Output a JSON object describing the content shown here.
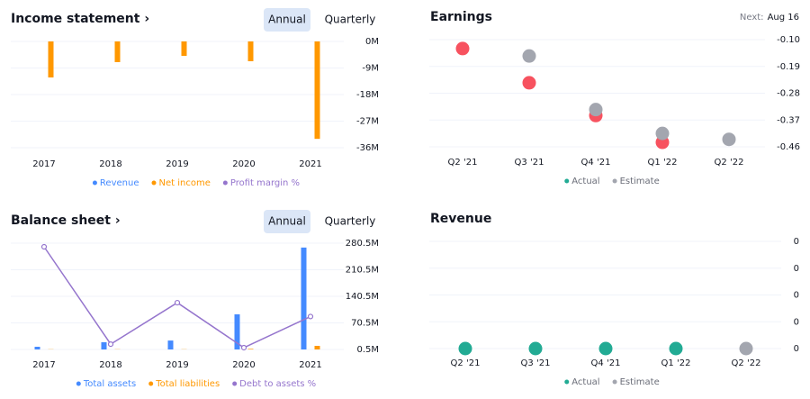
{
  "chart_data": [
    {
      "type": "bar",
      "title": "Income statement ›",
      "buttons": [
        "Annual",
        "Quarterly"
      ],
      "categories": [
        "2017",
        "2018",
        "2019",
        "2020",
        "2021"
      ],
      "series": [
        {
          "name": "Revenue",
          "color": "#448aff",
          "values": [
            null,
            null,
            null,
            null,
            null
          ]
        },
        {
          "name": "Net income",
          "color": "#ff9800",
          "values": [
            -12.2,
            -7,
            -4.9,
            -6.7,
            -33
          ]
        },
        {
          "name": "Profit margin %",
          "color": "#9575cd",
          "type": "line",
          "values": [
            null,
            null,
            null,
            null,
            null
          ]
        }
      ],
      "ylim": [
        -36,
        0
      ],
      "yticks": [
        {
          "value": 0,
          "label": "0M"
        },
        {
          "value": -9,
          "label": "-9M"
        },
        {
          "value": -18,
          "label": "-18M"
        },
        {
          "value": -27,
          "label": "-27M"
        },
        {
          "value": -36,
          "label": "-36M"
        }
      ],
      "grid": true
    },
    {
      "type": "scatter",
      "title": "Earnings",
      "next_label": "Next:",
      "next_date": "Aug 16",
      "categories": [
        "Q2 '21",
        "Q3 '21",
        "Q4 '21",
        "Q1 '22",
        "Q2 '22"
      ],
      "series": [
        {
          "name": "Actual",
          "color": "#22ab94",
          "marker_colors": [
            "#f7525f",
            "#f7525f",
            "#f7525f",
            "#f7525f",
            "#f7525f"
          ],
          "values": [
            -0.13,
            -0.245,
            -0.355,
            -0.445,
            null
          ]
        },
        {
          "name": "Estimate",
          "color": "#a3a6af",
          "values": [
            null,
            -0.155,
            -0.335,
            -0.415,
            -0.435
          ]
        }
      ],
      "ylim": [
        -0.46,
        -0.1
      ],
      "yticks": [
        {
          "value": -0.1,
          "label": "-0.10"
        },
        {
          "value": -0.19,
          "label": "-0.19"
        },
        {
          "value": -0.28,
          "label": "-0.28"
        },
        {
          "value": -0.37,
          "label": "-0.37"
        },
        {
          "value": -0.46,
          "label": "-0.46"
        }
      ],
      "grid": true
    },
    {
      "type": "bar",
      "title": "Balance sheet ›",
      "buttons": [
        "Annual",
        "Quarterly"
      ],
      "categories": [
        "2017",
        "2018",
        "2019",
        "2020",
        "2021"
      ],
      "series": [
        {
          "name": "Total assets",
          "color": "#448aff",
          "values": [
            7.6,
            19.5,
            24,
            93,
            269
          ]
        },
        {
          "name": "Total liabilities",
          "color": "#ff9800",
          "values": [
            1,
            1,
            1,
            2,
            10
          ]
        },
        {
          "name": "Debt to assets %",
          "color": "#9575cd",
          "type": "line",
          "axis": "y2",
          "values": [
            96.6,
            5,
            44,
            1.7,
            31
          ]
        }
      ],
      "ylim": [
        0.5,
        280.5
      ],
      "yticks": [
        {
          "value": 280.5,
          "label": "280.5M"
        },
        {
          "value": 210.5,
          "label": "210.5M"
        },
        {
          "value": 140.5,
          "label": "140.5M"
        },
        {
          "value": 70.5,
          "label": "70.5M"
        },
        {
          "value": 0.5,
          "label": "0.5M"
        }
      ],
      "y2lim": [
        0,
        100
      ],
      "grid": true
    },
    {
      "type": "scatter",
      "title": "Revenue",
      "categories": [
        "Q2 '21",
        "Q3 '21",
        "Q4 '21",
        "Q1 '22",
        "Q2 '22"
      ],
      "series": [
        {
          "name": "Actual",
          "color": "#22ab94",
          "values": [
            0,
            0,
            0,
            0,
            null
          ]
        },
        {
          "name": "Estimate",
          "color": "#a3a6af",
          "values": [
            null,
            null,
            null,
            null,
            0
          ]
        }
      ],
      "ylim": [
        0,
        0.4
      ],
      "yticks": [
        {
          "value": 0.4,
          "label": "0"
        },
        {
          "value": 0.3,
          "label": "0"
        },
        {
          "value": 0.2,
          "label": "0"
        },
        {
          "value": 0.1,
          "label": "0"
        },
        {
          "value": 0,
          "label": "0"
        }
      ],
      "grid": true
    }
  ]
}
